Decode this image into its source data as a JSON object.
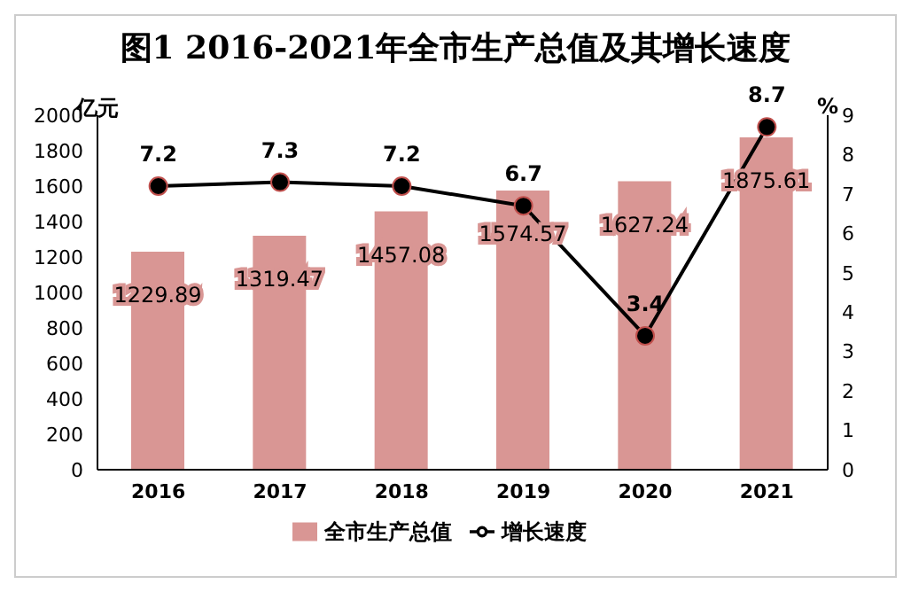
{
  "chart_data": {
    "type": "bar",
    "title": "图1  2016-2021年全市生产总值及其增长速度",
    "ylabel": "亿元",
    "y2label": "%",
    "categories": [
      "2016",
      "2017",
      "2018",
      "2019",
      "2020",
      "2021"
    ],
    "series": [
      {
        "name": "全市生产总值",
        "color": "#d99694",
        "values": [
          1229.89,
          1319.47,
          1457.08,
          1574.57,
          1627.24,
          1875.61
        ]
      },
      {
        "name": "增长速度",
        "type": "line",
        "axis": "y2",
        "color": "#000000",
        "values": [
          7.2,
          7.3,
          7.2,
          6.7,
          3.4,
          8.7
        ]
      }
    ],
    "ylim": [
      0,
      2000
    ],
    "yticks": [
      0,
      200,
      400,
      600,
      800,
      1000,
      1200,
      1400,
      1600,
      1800,
      2000
    ],
    "y2lim": [
      0,
      9
    ],
    "y2ticks": [
      0,
      1,
      2,
      3,
      4,
      5,
      6,
      7,
      8,
      9
    ],
    "data_labels": true,
    "marker": "circle",
    "legend": "bottom"
  }
}
